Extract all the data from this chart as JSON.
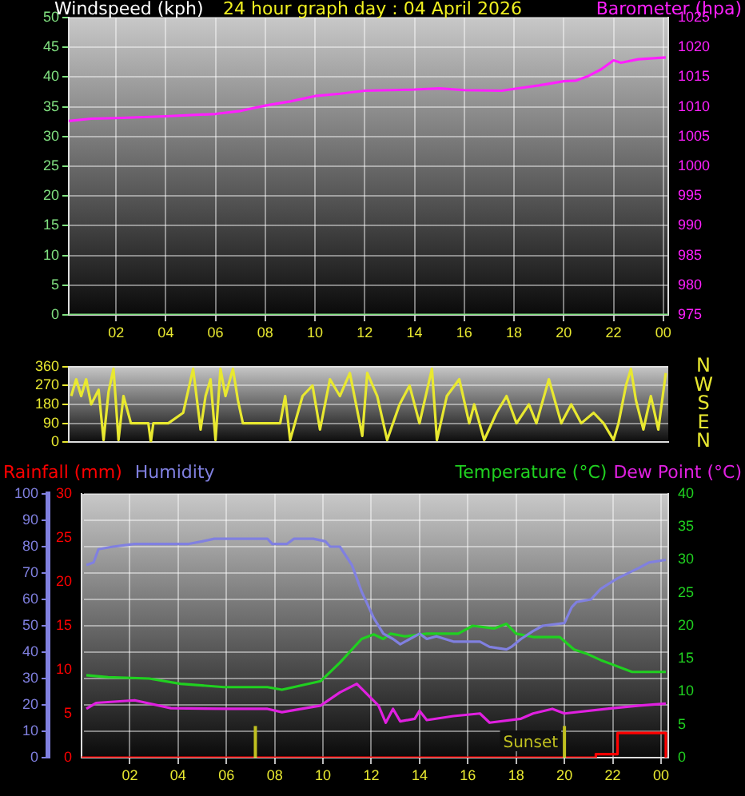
{
  "chart_data": [
    {
      "type": "line",
      "title": "24 hour graph day : 04 April 2026",
      "ylabel": "Windspeed (kph)",
      "y2label": "Barometer (hpa)",
      "xlim": [
        "2026-04-04T00:06",
        "2026-04-05T00:12"
      ],
      "xticks": [
        {
          "value": "2026-04-04T02:00",
          "label": "02"
        },
        {
          "value": "2026-04-04T04:00",
          "label": "04"
        },
        {
          "value": "2026-04-04T06:00",
          "label": "06"
        },
        {
          "value": "2026-04-04T08:00",
          "label": "08"
        },
        {
          "value": "2026-04-04T10:00",
          "label": "10"
        },
        {
          "value": "2026-04-04T12:00",
          "label": "12"
        },
        {
          "value": "2026-04-04T14:00",
          "label": "14"
        },
        {
          "value": "2026-04-04T16:00",
          "label": "16"
        },
        {
          "value": "2026-04-04T18:00",
          "label": "18"
        },
        {
          "value": "2026-04-04T20:00",
          "label": "20"
        },
        {
          "value": "2026-04-04T22:00",
          "label": "22"
        },
        {
          "value": "2026-04-05T00:00",
          "label": "00"
        }
      ],
      "ylim": [
        0,
        50
      ],
      "yticks": [
        0,
        5,
        10,
        15,
        20,
        25,
        30,
        35,
        40,
        45,
        50
      ],
      "y2lim": [
        975,
        1025
      ],
      "y2ticks": [
        975,
        980,
        985,
        990,
        995,
        1000,
        1005,
        1010,
        1015,
        1020,
        1025
      ],
      "grid": true,
      "legend": false,
      "marker": "none",
      "series": [
        {
          "color": "#80e080",
          "x": [
            "2026-04-04T00:06",
            "2026-04-05T00:12"
          ],
          "values": [
            0,
            0
          ]
        },
        {
          "color": "#ff20ff",
          "axis": "y2",
          "x": [
            "2026-04-04T00:06",
            "2026-04-04T01:00",
            "2026-04-04T02:00",
            "2026-04-04T04:00",
            "2026-04-04T06:00",
            "2026-04-04T07:00",
            "2026-04-04T08:00",
            "2026-04-04T09:00",
            "2026-04-04T10:00",
            "2026-04-04T11:00",
            "2026-04-04T12:00",
            "2026-04-04T14:00",
            "2026-04-04T15:00",
            "2026-04-04T16:00",
            "2026-04-04T17:30",
            "2026-04-04T18:00",
            "2026-04-04T19:00",
            "2026-04-04T20:00",
            "2026-04-04T20:30",
            "2026-04-04T21:00",
            "2026-04-04T21:30",
            "2026-04-04T22:00",
            "2026-04-04T22:18",
            "2026-04-04T23:00",
            "2026-04-05T00:06"
          ],
          "values": [
            1007.6,
            1008.0,
            1008.1,
            1008.4,
            1008.8,
            1009.3,
            1010.2,
            1010.9,
            1011.8,
            1012.2,
            1012.7,
            1012.9,
            1013.1,
            1012.8,
            1012.7,
            1013.0,
            1013.6,
            1014.3,
            1014.4,
            1015.2,
            1016.3,
            1017.8,
            1017.4,
            1018.0,
            1018.3
          ]
        }
      ]
    },
    {
      "type": "line",
      "xlim": [
        "2026-04-04T00:06",
        "2026-04-05T00:12"
      ],
      "ylim": [
        0,
        360
      ],
      "yticks": [
        0,
        90,
        180,
        270,
        360
      ],
      "annotations": [
        "N",
        "W",
        "S",
        "E",
        "N"
      ],
      "tick_labels": "y",
      "grid": "y",
      "legend": false,
      "marker": "none",
      "series": [
        {
          "color": "#e8e830",
          "x": [
            "2026-04-04T00:12",
            "2026-04-04T00:24",
            "2026-04-04T00:36",
            "2026-04-04T00:48",
            "2026-04-04T01:00",
            "2026-04-04T01:18",
            "2026-04-04T01:30",
            "2026-04-04T01:42",
            "2026-04-04T01:54",
            "2026-04-04T02:06",
            "2026-04-04T02:18",
            "2026-04-04T02:36",
            "2026-04-04T03:00",
            "2026-04-04T03:18",
            "2026-04-04T03:24",
            "2026-04-04T03:30",
            "2026-04-04T04:06",
            "2026-04-04T04:42",
            "2026-04-04T05:06",
            "2026-04-04T05:24",
            "2026-04-04T05:36",
            "2026-04-04T05:48",
            "2026-04-04T06:00",
            "2026-04-04T06:12",
            "2026-04-04T06:24",
            "2026-04-04T06:42",
            "2026-04-04T06:54",
            "2026-04-04T07:06",
            "2026-04-04T07:42",
            "2026-04-04T08:36",
            "2026-04-04T08:48",
            "2026-04-04T09:00",
            "2026-04-04T09:30",
            "2026-04-04T09:54",
            "2026-04-04T10:12",
            "2026-04-04T10:36",
            "2026-04-04T11:00",
            "2026-04-04T11:24",
            "2026-04-04T11:54",
            "2026-04-04T12:06",
            "2026-04-04T12:30",
            "2026-04-04T12:54",
            "2026-04-04T13:24",
            "2026-04-04T13:48",
            "2026-04-04T14:12",
            "2026-04-04T14:42",
            "2026-04-04T14:54",
            "2026-04-04T15:18",
            "2026-04-04T15:48",
            "2026-04-04T16:12",
            "2026-04-04T16:24",
            "2026-04-04T16:48",
            "2026-04-04T17:18",
            "2026-04-04T17:42",
            "2026-04-04T18:06",
            "2026-04-04T18:36",
            "2026-04-04T18:54",
            "2026-04-04T19:24",
            "2026-04-04T19:54",
            "2026-04-04T20:18",
            "2026-04-04T20:42",
            "2026-04-04T21:12",
            "2026-04-04T21:36",
            "2026-04-04T22:00",
            "2026-04-04T22:12",
            "2026-04-04T22:30",
            "2026-04-04T22:42",
            "2026-04-04T22:54",
            "2026-04-04T23:12",
            "2026-04-04T23:30",
            "2026-04-04T23:48",
            "2026-04-05T00:06"
          ],
          "values": [
            220,
            300,
            220,
            300,
            180,
            250,
            10,
            240,
            350,
            10,
            220,
            90,
            90,
            90,
            0,
            90,
            90,
            140,
            350,
            60,
            220,
            300,
            10,
            350,
            220,
            350,
            200,
            90,
            90,
            90,
            220,
            10,
            220,
            270,
            60,
            300,
            220,
            330,
            30,
            330,
            220,
            10,
            180,
            270,
            90,
            350,
            10,
            220,
            300,
            90,
            180,
            10,
            140,
            220,
            90,
            180,
            90,
            300,
            90,
            180,
            90,
            140,
            90,
            10,
            90,
            270,
            350,
            200,
            60,
            220,
            60,
            330
          ]
        }
      ]
    },
    {
      "type": "line",
      "xlim": [
        "2026-04-04T00:00",
        "2026-04-05T00:18"
      ],
      "xticks": [
        {
          "value": "2026-04-04T02:00",
          "label": "02"
        },
        {
          "value": "2026-04-04T04:00",
          "label": "04"
        },
        {
          "value": "2026-04-04T06:00",
          "label": "06"
        },
        {
          "value": "2026-04-04T08:00",
          "label": "08"
        },
        {
          "value": "2026-04-04T10:00",
          "label": "10"
        },
        {
          "value": "2026-04-04T12:00",
          "label": "12"
        },
        {
          "value": "2026-04-04T14:00",
          "label": "14"
        },
        {
          "value": "2026-04-04T16:00",
          "label": "16"
        },
        {
          "value": "2026-04-04T18:00",
          "label": "18"
        },
        {
          "value": "2026-04-04T20:00",
          "label": "20"
        },
        {
          "value": "2026-04-04T22:00",
          "label": "22"
        },
        {
          "value": "2026-04-05T00:00",
          "label": "00"
        }
      ],
      "ylim": [
        0,
        100
      ],
      "yticks": [
        0,
        10,
        20,
        30,
        40,
        50,
        60,
        70,
        80,
        90,
        100
      ],
      "y2lim": [
        0,
        40
      ],
      "y2ticks": [
        0,
        5,
        10,
        15,
        20,
        25,
        30,
        35,
        40
      ],
      "y3lim": [
        0,
        30
      ],
      "y3ticks": [
        0,
        5,
        10,
        15,
        20,
        25,
        30
      ],
      "grid": true,
      "legend": "top",
      "marker": "none",
      "ref_lines": [
        {
          "axis": "x",
          "value": "2026-04-04T07:12",
          "color": "#c0c020"
        },
        {
          "axis": "x",
          "value": "2026-04-04T20:00",
          "label": "Sunset",
          "color": "#c0c020"
        }
      ],
      "series": [
        {
          "name": "Rainfall (mm)",
          "type": "step",
          "axis": "y3",
          "color": "#ff0000",
          "x": [
            "2026-04-04T00:00",
            "2026-04-04T21:18",
            "2026-04-04T22:12",
            "2026-04-05T00:12"
          ],
          "values": [
            0,
            0.4,
            2.8,
            0
          ]
        },
        {
          "name": "Humidity",
          "color": "#8080e0",
          "x": [
            "2026-04-04T00:12",
            "2026-04-04T00:30",
            "2026-04-04T00:42",
            "2026-04-04T01:18",
            "2026-04-04T02:12",
            "2026-04-04T04:24",
            "2026-04-04T05:00",
            "2026-04-04T05:30",
            "2026-04-04T07:42",
            "2026-04-04T07:54",
            "2026-04-04T08:30",
            "2026-04-04T08:48",
            "2026-04-04T09:36",
            "2026-04-04T10:06",
            "2026-04-04T10:18",
            "2026-04-04T10:42",
            "2026-04-04T11:12",
            "2026-04-04T11:36",
            "2026-04-04T12:06",
            "2026-04-04T12:30",
            "2026-04-04T12:54",
            "2026-04-04T13:12",
            "2026-04-04T13:36",
            "2026-04-04T14:00",
            "2026-04-04T14:18",
            "2026-04-04T14:42",
            "2026-04-04T15:24",
            "2026-04-04T16:30",
            "2026-04-04T16:54",
            "2026-04-04T17:36",
            "2026-04-04T17:48",
            "2026-04-04T18:12",
            "2026-04-04T18:42",
            "2026-04-04T19:06",
            "2026-04-04T20:00",
            "2026-04-04T20:18",
            "2026-04-04T20:30",
            "2026-04-04T21:06",
            "2026-04-04T21:30",
            "2026-04-04T22:12",
            "2026-04-04T23:06",
            "2026-04-04T23:30",
            "2026-04-05T00:12"
          ],
          "values": [
            73,
            74,
            79,
            80,
            81,
            81,
            82,
            83,
            83,
            81,
            81,
            83,
            83,
            82,
            80,
            80,
            73,
            63,
            53,
            47,
            45,
            43,
            45,
            47,
            45,
            46,
            44,
            44,
            42,
            41,
            42,
            45,
            48,
            50,
            51,
            57,
            59,
            60,
            64,
            68,
            72,
            74,
            75
          ]
        },
        {
          "name": "Temperature (°C)",
          "axis": "y2",
          "color": "#20d020",
          "x": [
            "2026-04-04T00:12",
            "2026-04-04T01:06",
            "2026-04-04T02:48",
            "2026-04-04T04:06",
            "2026-04-04T05:54",
            "2026-04-04T07:42",
            "2026-04-04T08:18",
            "2026-04-04T09:54",
            "2026-04-04T10:42",
            "2026-04-04T11:36",
            "2026-04-04T12:06",
            "2026-04-04T12:30",
            "2026-04-04T12:48",
            "2026-04-04T13:24",
            "2026-04-04T14:18",
            "2026-04-04T15:36",
            "2026-04-04T16:12",
            "2026-04-04T17:06",
            "2026-04-04T17:36",
            "2026-04-04T18:00",
            "2026-04-04T18:42",
            "2026-04-04T19:48",
            "2026-04-04T20:24",
            "2026-04-04T20:54",
            "2026-04-04T21:30",
            "2026-04-04T22:48",
            "2026-04-05T00:12"
          ],
          "values": [
            12.5,
            12.2,
            12.0,
            11.2,
            10.7,
            10.7,
            10.3,
            11.6,
            14.4,
            18.0,
            18.7,
            18.0,
            18.8,
            18.4,
            18.8,
            18.8,
            20.0,
            19.6,
            20.3,
            18.8,
            18.3,
            18.3,
            16.4,
            15.8,
            14.8,
            13.0,
            13.0
          ]
        },
        {
          "name": "Dew Point (°C)",
          "axis": "y2",
          "color": "#e020e0",
          "x": [
            "2026-04-04T00:12",
            "2026-04-04T00:36",
            "2026-04-04T02:12",
            "2026-04-04T03:42",
            "2026-04-04T06:06",
            "2026-04-04T07:42",
            "2026-04-04T08:18",
            "2026-04-04T09:54",
            "2026-04-04T10:42",
            "2026-04-04T11:24",
            "2026-04-04T12:18",
            "2026-04-04T12:36",
            "2026-04-04T12:54",
            "2026-04-04T13:12",
            "2026-04-04T13:48",
            "2026-04-04T14:00",
            "2026-04-04T14:18",
            "2026-04-04T15:24",
            "2026-04-04T16:30",
            "2026-04-04T16:54",
            "2026-04-04T18:12",
            "2026-04-04T18:42",
            "2026-04-04T19:30",
            "2026-04-04T20:00",
            "2026-04-04T22:00",
            "2026-04-04T23:06",
            "2026-04-05T00:12"
          ],
          "values": [
            7.4,
            8.3,
            8.7,
            7.5,
            7.4,
            7.4,
            6.9,
            7.9,
            9.9,
            11.2,
            7.9,
            5.3,
            7.4,
            5.5,
            5.9,
            7.1,
            5.7,
            6.3,
            6.7,
            5.3,
            5.9,
            6.7,
            7.4,
            6.7,
            7.5,
            7.9,
            8.2
          ]
        }
      ]
    }
  ]
}
